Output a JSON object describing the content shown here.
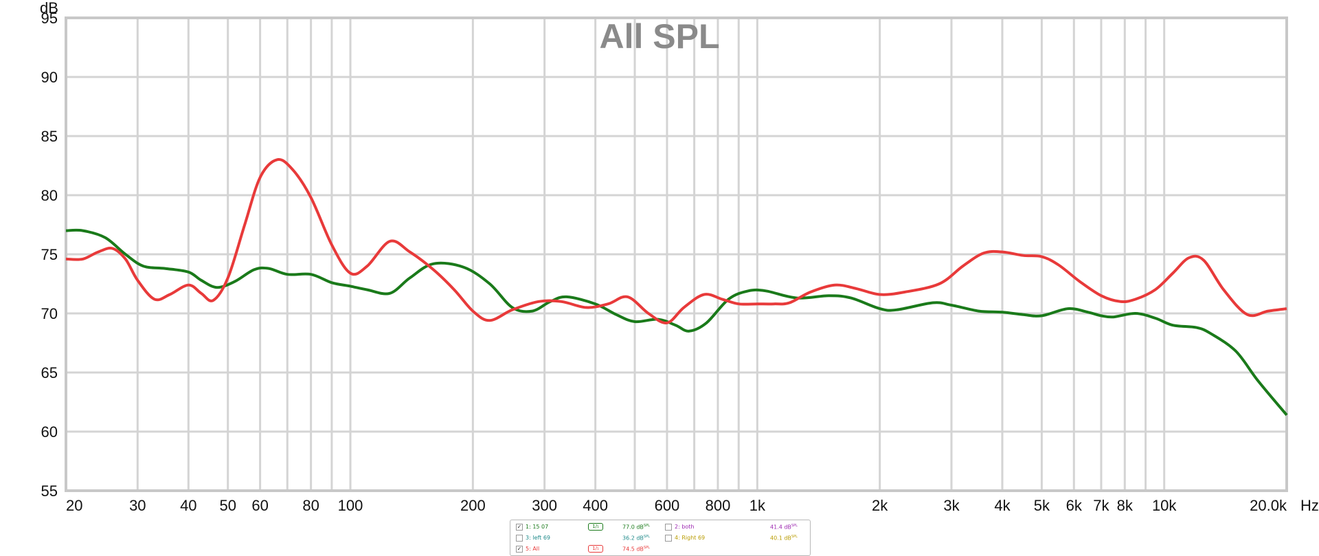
{
  "chart_data": {
    "type": "line",
    "title": "All SPL",
    "ylabel": "dB",
    "xunit": "Hz",
    "xscale": "log",
    "xlim": [
      20,
      20000
    ],
    "ylim": [
      55,
      95
    ],
    "grid": true,
    "y_ticks": [
      55,
      60,
      65,
      70,
      75,
      80,
      85,
      90,
      95
    ],
    "x_ticks": [
      {
        "v": 20,
        "label": "20"
      },
      {
        "v": 30,
        "label": "30"
      },
      {
        "v": 40,
        "label": "40"
      },
      {
        "v": 50,
        "label": "50"
      },
      {
        "v": 60,
        "label": "60"
      },
      {
        "v": 80,
        "label": "80"
      },
      {
        "v": 100,
        "label": "100"
      },
      {
        "v": 200,
        "label": "200"
      },
      {
        "v": 300,
        "label": "300"
      },
      {
        "v": 400,
        "label": "400"
      },
      {
        "v": 600,
        "label": "600"
      },
      {
        "v": 800,
        "label": "800"
      },
      {
        "v": 1000,
        "label": "1k"
      },
      {
        "v": 2000,
        "label": "2k"
      },
      {
        "v": 3000,
        "label": "3k"
      },
      {
        "v": 4000,
        "label": "4k"
      },
      {
        "v": 5000,
        "label": "5k"
      },
      {
        "v": 6000,
        "label": "6k"
      },
      {
        "v": 7000,
        "label": "7k"
      },
      {
        "v": 8000,
        "label": "8k"
      },
      {
        "v": 10000,
        "label": "10k"
      },
      {
        "v": 20000,
        "label": "20.0k"
      }
    ],
    "series": [
      {
        "name": "1: 15 07",
        "color": "#1a7a1a",
        "points": [
          [
            20,
            77.0
          ],
          [
            22,
            77.0
          ],
          [
            25,
            76.4
          ],
          [
            28,
            75.0
          ],
          [
            31,
            74.0
          ],
          [
            35,
            73.8
          ],
          [
            40,
            73.5
          ],
          [
            43,
            72.8
          ],
          [
            47,
            72.2
          ],
          [
            52,
            72.7
          ],
          [
            58,
            73.7
          ],
          [
            63,
            73.8
          ],
          [
            70,
            73.3
          ],
          [
            80,
            73.3
          ],
          [
            90,
            72.6
          ],
          [
            100,
            72.3
          ],
          [
            110,
            72.0
          ],
          [
            125,
            71.7
          ],
          [
            140,
            73.0
          ],
          [
            160,
            74.2
          ],
          [
            190,
            73.9
          ],
          [
            220,
            72.5
          ],
          [
            250,
            70.5
          ],
          [
            280,
            70.2
          ],
          [
            310,
            71.0
          ],
          [
            340,
            71.4
          ],
          [
            400,
            70.8
          ],
          [
            450,
            69.9
          ],
          [
            500,
            69.3
          ],
          [
            570,
            69.5
          ],
          [
            630,
            69.0
          ],
          [
            680,
            68.5
          ],
          [
            750,
            69.2
          ],
          [
            850,
            71.2
          ],
          [
            950,
            71.9
          ],
          [
            1050,
            71.9
          ],
          [
            1250,
            71.3
          ],
          [
            1500,
            71.5
          ],
          [
            1700,
            71.3
          ],
          [
            2000,
            70.4
          ],
          [
            2200,
            70.3
          ],
          [
            2700,
            70.9
          ],
          [
            3000,
            70.7
          ],
          [
            3500,
            70.2
          ],
          [
            4000,
            70.1
          ],
          [
            4500,
            69.9
          ],
          [
            5000,
            69.8
          ],
          [
            5800,
            70.4
          ],
          [
            6500,
            70.1
          ],
          [
            7000,
            69.8
          ],
          [
            7500,
            69.7
          ],
          [
            8500,
            70.0
          ],
          [
            9500,
            69.6
          ],
          [
            10500,
            69.0
          ],
          [
            12000,
            68.8
          ],
          [
            13000,
            68.3
          ],
          [
            15000,
            66.8
          ],
          [
            17000,
            64.3
          ],
          [
            20000,
            61.4
          ]
        ]
      },
      {
        "name": "5: All",
        "color": "#e83a3a",
        "points": [
          [
            20,
            74.6
          ],
          [
            22,
            74.6
          ],
          [
            24,
            75.2
          ],
          [
            26,
            75.5
          ],
          [
            28,
            74.6
          ],
          [
            30,
            72.8
          ],
          [
            33,
            71.2
          ],
          [
            36,
            71.6
          ],
          [
            40,
            72.4
          ],
          [
            43,
            71.7
          ],
          [
            46,
            71.1
          ],
          [
            50,
            73.0
          ],
          [
            55,
            77.5
          ],
          [
            60,
            81.5
          ],
          [
            66,
            83.0
          ],
          [
            72,
            82.2
          ],
          [
            80,
            79.8
          ],
          [
            90,
            75.8
          ],
          [
            100,
            73.4
          ],
          [
            110,
            74.0
          ],
          [
            125,
            76.1
          ],
          [
            140,
            75.2
          ],
          [
            160,
            73.7
          ],
          [
            180,
            72.0
          ],
          [
            200,
            70.2
          ],
          [
            220,
            69.4
          ],
          [
            250,
            70.3
          ],
          [
            290,
            71.0
          ],
          [
            330,
            71.0
          ],
          [
            380,
            70.5
          ],
          [
            430,
            70.8
          ],
          [
            480,
            71.4
          ],
          [
            540,
            70.0
          ],
          [
            600,
            69.2
          ],
          [
            660,
            70.5
          ],
          [
            740,
            71.6
          ],
          [
            820,
            71.2
          ],
          [
            900,
            70.8
          ],
          [
            1000,
            70.8
          ],
          [
            1100,
            70.8
          ],
          [
            1200,
            70.9
          ],
          [
            1350,
            71.8
          ],
          [
            1550,
            72.4
          ],
          [
            1750,
            72.1
          ],
          [
            2000,
            71.6
          ],
          [
            2300,
            71.8
          ],
          [
            2800,
            72.5
          ],
          [
            3200,
            74.0
          ],
          [
            3600,
            75.1
          ],
          [
            4000,
            75.2
          ],
          [
            4500,
            74.9
          ],
          [
            5000,
            74.8
          ],
          [
            5500,
            74.1
          ],
          [
            6200,
            72.7
          ],
          [
            7000,
            71.5
          ],
          [
            7800,
            71.0
          ],
          [
            8500,
            71.2
          ],
          [
            9500,
            72.0
          ],
          [
            10500,
            73.4
          ],
          [
            11500,
            74.7
          ],
          [
            12500,
            74.5
          ],
          [
            14000,
            72.0
          ],
          [
            16000,
            69.9
          ],
          [
            18000,
            70.2
          ],
          [
            20000,
            70.4
          ]
        ]
      }
    ]
  },
  "legend": {
    "entries": [
      {
        "checked": true,
        "check_mark": "✓",
        "name": "1: 15 07",
        "value": "77.0 dB",
        "sub": "SPL",
        "color": "#1a7a1a",
        "smoothing": "1/₁"
      },
      {
        "checked": false,
        "check_mark": "",
        "name": "2: both",
        "value": "41.4 dB",
        "sub": "SPL",
        "color": "#9c27b0",
        "smoothing": ""
      },
      {
        "checked": false,
        "check_mark": "",
        "name": "3: left 69",
        "value": "36.2 dB",
        "sub": "SPL",
        "color": "#1f8a8a",
        "smoothing": ""
      },
      {
        "checked": false,
        "check_mark": "",
        "name": "4: Right 69",
        "value": "40.1 dB",
        "sub": "SPL",
        "color": "#b89b00",
        "smoothing": ""
      },
      {
        "checked": true,
        "check_mark": "✓",
        "name": "5: All",
        "value": "74.5 dB",
        "sub": "SPL",
        "color": "#e83a3a",
        "smoothing": "1/₁"
      }
    ]
  }
}
